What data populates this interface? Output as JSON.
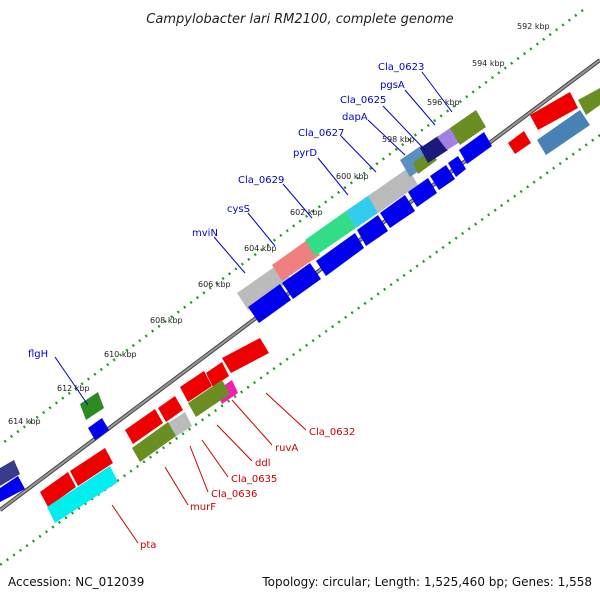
{
  "title": "Campylobacter lari RM2100, complete genome",
  "footer": {
    "accession": "Accession: NC_012039",
    "summary": "Topology: circular; Length: 1,525,460 bp; Genes: 1,558"
  },
  "ticks": [
    "592 kbp",
    "594 kbp",
    "596 kbp",
    "598 kbp",
    "600 kbp",
    "602 kbp",
    "604 kbp",
    "606 kbp",
    "608 kbp",
    "610 kbp",
    "612 kbp",
    "614 kbp"
  ],
  "genes_top": [
    "Cla_0623",
    "pgsA",
    "Cla_0625",
    "dapA",
    "Cla_0627",
    "pyrD",
    "Cla_0629",
    "cysS",
    "mviN",
    "flgH"
  ],
  "genes_bottom": [
    "Cla_0632",
    "ruvA",
    "ddl",
    "Cla_0635",
    "Cla_0636",
    "murF",
    "pta"
  ],
  "colors": {
    "label_top": "#0000cc",
    "label_bottom": "#cc0000",
    "cds_forward": "#0000ee",
    "cds_reverse": "#ee0000",
    "backbone": "#888888",
    "ticks": "#229922"
  }
}
